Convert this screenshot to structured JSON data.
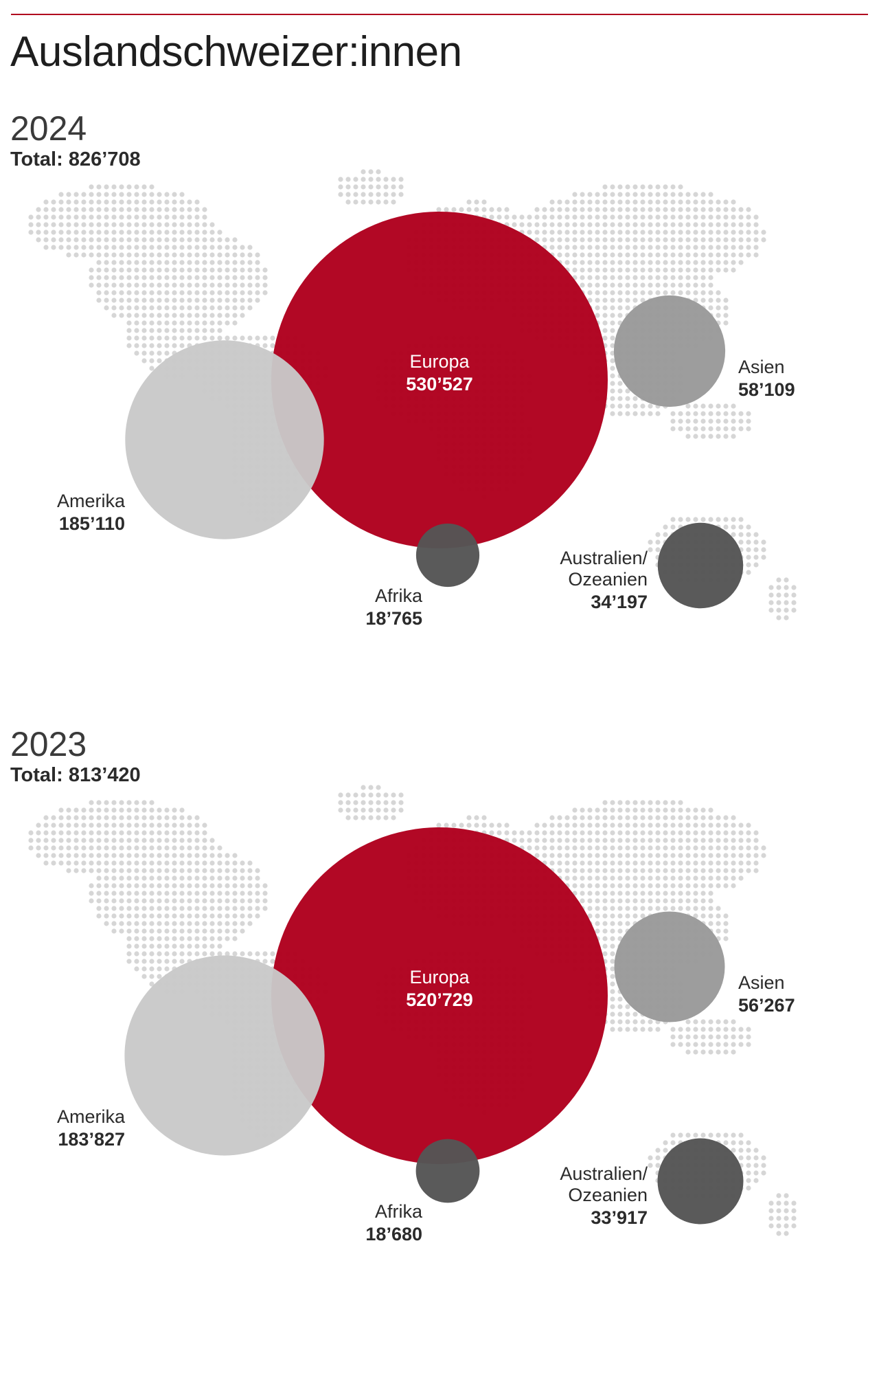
{
  "title": "Auslandschweizer:innen",
  "total_label": "Total:",
  "colors": {
    "accent": "#b0001e",
    "europe": "#b0001e",
    "america": "#c9c9c9",
    "asia": "#9a9a9a",
    "africa": "#555555",
    "oceania": "#555555",
    "map_dots": "#d6d6d6",
    "rule": "#b0001e"
  },
  "chart_data": [
    {
      "type": "bubble-map",
      "year": "2024",
      "total": "826’708",
      "regions": [
        {
          "key": "europe",
          "name": "Europa",
          "value": 530527,
          "label": "530’527"
        },
        {
          "key": "america",
          "name": "Amerika",
          "value": 185110,
          "label": "185’110"
        },
        {
          "key": "asia",
          "name": "Asien",
          "value": 58109,
          "label": "58’109"
        },
        {
          "key": "oceania",
          "name": "Australien/\nOzeanien",
          "value": 34197,
          "label": "34’197"
        },
        {
          "key": "africa",
          "name": "Afrika",
          "value": 18765,
          "label": "18’765"
        }
      ]
    },
    {
      "type": "bubble-map",
      "year": "2023",
      "total": "813’420",
      "regions": [
        {
          "key": "europe",
          "name": "Europa",
          "value": 520729,
          "label": "520’729"
        },
        {
          "key": "america",
          "name": "Amerika",
          "value": 183827,
          "label": "183’827"
        },
        {
          "key": "asia",
          "name": "Asien",
          "value": 56267,
          "label": "56’267"
        },
        {
          "key": "oceania",
          "name": "Australien/\nOzeanien",
          "value": 33917,
          "label": "33’917"
        },
        {
          "key": "africa",
          "name": "Afrika",
          "value": 18680,
          "label": "18’680"
        }
      ]
    }
  ]
}
